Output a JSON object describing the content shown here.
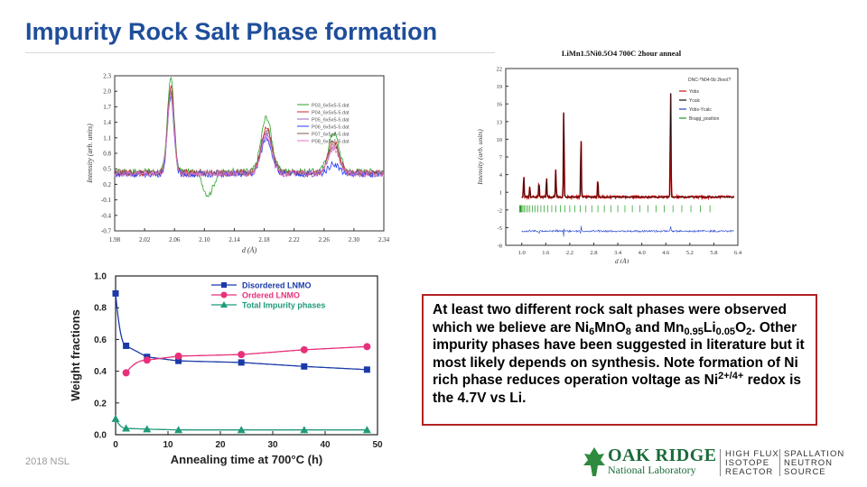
{
  "title": "Impurity Rock Salt Phase formation",
  "footer": "2018 NSL",
  "textbox": {
    "p1": "At least two different rock salt phases were observed which we believe are Ni",
    "s1": "6",
    "p2": "Mn",
    "p3": "O",
    "s2": "8",
    "p4": "  and Mn",
    "s3": "0.95",
    "p5": "Li",
    "s4": "0.05",
    "p6": "O",
    "s5": "2",
    "p7": ".  Other impurity phases have been suggested in literature but it most likely depends on synthesis.  Note formation of Ni rich phase reduces operation voltage as Ni",
    "sup1": "2+/4+",
    "p8": " redox is the 4.7V vs Li."
  },
  "logo": {
    "name": "OAK RIDGE",
    "subtitle": "National Laboratory",
    "hfir": "HIGH FLUX ISOTOPE REACTOR",
    "sns": "SPALLATION NEUTRON SOURCE"
  },
  "colors": {
    "title": "#1f4e9a",
    "disordered": "#1a3aa8",
    "ordered": "#e8307a",
    "impurity": "#1f9a7a",
    "border": "#b22222"
  },
  "chart_data": [
    {
      "type": "line",
      "xlabel": "d (Å)",
      "ylabel": "Intensity (arb. units)",
      "xlim": [
        1.98,
        2.34
      ],
      "ylim": [
        -0.7,
        2.3
      ],
      "xticks": [
        "1.98",
        "2.02",
        "2.06",
        "2.10",
        "2.14",
        "2.18",
        "2.22",
        "2.26",
        "2.30",
        "2.34"
      ],
      "yticks": [
        "2.3",
        "2.0",
        "1.7",
        "1.4",
        "1.1",
        "0.8",
        "0.5",
        "0.2",
        "-0.1",
        "-0.4",
        "-0.7"
      ],
      "legend": [
        "P03_6x5x5-5.dat",
        "P04_6x5x5-5.dat",
        "P05_6x5x5-5.dat",
        "P06_6x5x5-5.dat",
        "P07_6x5x5-5.dat",
        "P08_6x5x5-5.dat"
      ],
      "legend_position": "top-right",
      "series": [
        {
          "color": "#2ca02c",
          "peaks": [
            {
              "d": 2.055,
              "h": 2.3
            },
            {
              "d": 2.105,
              "h": 0.0
            },
            {
              "d": 2.183,
              "h": 1.5
            },
            {
              "d": 2.273,
              "h": 1.2
            }
          ],
          "base": 0.45
        },
        {
          "color": "#d62728",
          "peaks": [
            {
              "d": 2.055,
              "h": 2.1
            },
            {
              "d": 2.183,
              "h": 1.3
            },
            {
              "d": 2.273,
              "h": 1.05
            }
          ],
          "base": 0.42
        },
        {
          "color": "#9467bd",
          "peaks": [
            {
              "d": 2.055,
              "h": 2.0
            },
            {
              "d": 2.183,
              "h": 1.2
            },
            {
              "d": 2.273,
              "h": 0.95
            }
          ],
          "base": 0.4
        },
        {
          "color": "#1f3cff",
          "peaks": [
            {
              "d": 2.055,
              "h": 1.9
            },
            {
              "d": 2.183,
              "h": 1.1
            },
            {
              "d": 2.273,
              "h": 0.6
            }
          ],
          "base": 0.4
        },
        {
          "color": "#8c564b",
          "peaks": [
            {
              "d": 2.055,
              "h": 2.05
            },
            {
              "d": 2.183,
              "h": 1.25
            },
            {
              "d": 2.273,
              "h": 1.0
            }
          ],
          "base": 0.43
        },
        {
          "color": "#e377c2",
          "peaks": [
            {
              "d": 2.055,
              "h": 1.95
            },
            {
              "d": 2.183,
              "h": 1.15
            },
            {
              "d": 2.273,
              "h": 0.9
            }
          ],
          "base": 0.41
        }
      ]
    },
    {
      "type": "line",
      "title": "LiMn1.5Ni0.5O4 700C 2hour anneal",
      "xlabel": "d (Å)",
      "ylabel": "Intensity (arb. units)",
      "xlim": [
        0.6,
        6.4
      ],
      "ylim": [
        -8,
        22
      ],
      "xticks": [
        "1.0",
        "1.6",
        "2.2",
        "2.8",
        "3.4",
        "4.0",
        "4.6",
        "5.2",
        "5.8",
        "6.4"
      ],
      "yticks": [
        "22",
        "19",
        "16",
        "13",
        "10",
        "7",
        "4",
        "1",
        "-2",
        "-5",
        "-8"
      ],
      "legend_title": "DNC-*N04-5b 2kooI?",
      "legend": [
        "Yobs",
        "Ycalc",
        "Yobs-Ycalc",
        "Bragg_position"
      ],
      "legend_position": "top-right",
      "peaks": [
        {
          "d": 1.05,
          "h": 3.5
        },
        {
          "d": 1.2,
          "h": 1.8
        },
        {
          "d": 1.43,
          "h": 2.6
        },
        {
          "d": 1.62,
          "h": 3.2
        },
        {
          "d": 1.85,
          "h": 4.8
        },
        {
          "d": 2.05,
          "h": 15.5
        },
        {
          "d": 2.48,
          "h": 10.5
        },
        {
          "d": 2.9,
          "h": 3.0
        },
        {
          "d": 4.72,
          "h": 19.0
        }
      ],
      "baseline": 0.2
    },
    {
      "type": "line",
      "xlabel": "Annealing time at 700°C (h)",
      "ylabel": "Weight fractions",
      "xlim": [
        0,
        50
      ],
      "ylim": [
        0.0,
        1.0
      ],
      "xticks": [
        "0",
        "10",
        "20",
        "30",
        "40",
        "50"
      ],
      "yticks": [
        "0.0",
        "0.2",
        "0.4",
        "0.6",
        "0.8",
        "1.0"
      ],
      "legend_position": "top-right",
      "series": [
        {
          "name": "Disordered LNMO",
          "marker": "square",
          "color": "#1a3aa8",
          "x": [
            0,
            2,
            6,
            12,
            24,
            36,
            48
          ],
          "y": [
            0.89,
            0.56,
            0.49,
            0.465,
            0.455,
            0.43,
            0.41
          ]
        },
        {
          "name": "Ordered LNMO",
          "marker": "circle",
          "color": "#e8307a",
          "x": [
            2,
            6,
            12,
            24,
            36,
            48
          ],
          "y": [
            0.39,
            0.47,
            0.495,
            0.505,
            0.535,
            0.555
          ]
        },
        {
          "name": "Total Impurity phases",
          "marker": "triangle",
          "color": "#1f9a7a",
          "x": [
            0,
            2,
            6,
            12,
            24,
            36,
            48
          ],
          "y": [
            0.1,
            0.04,
            0.035,
            0.03,
            0.03,
            0.03,
            0.03
          ]
        }
      ]
    }
  ]
}
